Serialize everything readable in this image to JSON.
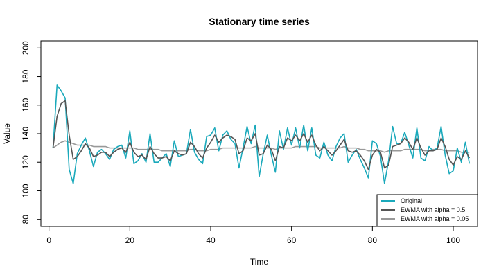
{
  "chart_data": {
    "type": "line",
    "title": "Stationary time series",
    "xlabel": "Time",
    "ylabel": "Value",
    "xlim": [
      -2,
      106
    ],
    "ylim": [
      75,
      205
    ],
    "xticks": [
      0,
      20,
      40,
      60,
      80,
      100
    ],
    "yticks": [
      80,
      100,
      120,
      140,
      160,
      180,
      200
    ],
    "grid": false,
    "legend_position": "bottom-right",
    "x": [
      1,
      2,
      3,
      4,
      5,
      6,
      7,
      8,
      9,
      10,
      11,
      12,
      13,
      14,
      15,
      16,
      17,
      18,
      19,
      20,
      21,
      22,
      23,
      24,
      25,
      26,
      27,
      28,
      29,
      30,
      31,
      32,
      33,
      34,
      35,
      36,
      37,
      38,
      39,
      40,
      41,
      42,
      43,
      44,
      45,
      46,
      47,
      48,
      49,
      50,
      51,
      52,
      53,
      54,
      55,
      56,
      57,
      58,
      59,
      60,
      61,
      62,
      63,
      64,
      65,
      66,
      67,
      68,
      69,
      70,
      71,
      72,
      73,
      74,
      75,
      76,
      77,
      78,
      79,
      80,
      81,
      82,
      83,
      84,
      85,
      86,
      87,
      88,
      89,
      90,
      91,
      92,
      93,
      94,
      95,
      96,
      97,
      98,
      99,
      100,
      101,
      102,
      103,
      104
    ],
    "series": [
      {
        "name": "Original",
        "color": "#1aa9bb",
        "values": [
          130,
          174,
          170,
          165,
          115,
          105,
          126,
          132,
          137,
          128,
          117,
          127,
          129,
          126,
          122,
          129,
          131,
          132,
          123,
          142,
          119,
          121,
          126,
          120,
          140,
          120,
          120,
          123,
          126,
          117,
          135,
          124,
          125,
          126,
          143,
          127,
          122,
          119,
          138,
          139,
          144,
          128,
          139,
          142,
          136,
          133,
          116,
          130,
          145,
          133,
          146,
          110,
          126,
          139,
          125,
          113,
          142,
          129,
          144,
          132,
          144,
          130,
          146,
          128,
          144,
          125,
          123,
          134,
          125,
          121,
          131,
          137,
          140,
          120,
          125,
          129,
          122,
          116,
          109,
          135,
          133,
          124,
          105,
          121,
          145,
          133,
          133,
          141,
          132,
          123,
          144,
          123,
          121,
          131,
          128,
          130,
          145,
          125,
          112,
          114,
          130,
          120,
          134,
          119
        ]
      },
      {
        "name": "EWMA with alpha = 0.5",
        "color": "#555555",
        "values": [
          130,
          152,
          161,
          163,
          139,
          122,
          124,
          128,
          133,
          130,
          124,
          125,
          127,
          127,
          124,
          127,
          129,
          130,
          127,
          134,
          127,
          124,
          125,
          122,
          131,
          126,
          123,
          123,
          124,
          121,
          128,
          126,
          125,
          126,
          134,
          131,
          126,
          123,
          130,
          134,
          139,
          134,
          137,
          139,
          138,
          136,
          126,
          128,
          137,
          135,
          140,
          125,
          126,
          132,
          129,
          121,
          131,
          130,
          137,
          135,
          139,
          135,
          140,
          134,
          139,
          132,
          128,
          131,
          128,
          125,
          128,
          132,
          136,
          128,
          127,
          128,
          125,
          121,
          115,
          125,
          129,
          127,
          116,
          118,
          131,
          132,
          133,
          137,
          134,
          129,
          137,
          130,
          125,
          128,
          128,
          129,
          137,
          131,
          122,
          118,
          124,
          122,
          128,
          123
        ]
      },
      {
        "name": "EWMA with alpha = 0.05",
        "color": "#999999",
        "values": [
          130,
          132,
          134,
          135,
          134,
          133,
          132,
          132,
          132,
          132,
          131,
          131,
          131,
          131,
          130,
          130,
          130,
          130,
          130,
          130,
          130,
          129,
          129,
          129,
          129,
          129,
          129,
          128,
          128,
          128,
          128,
          128,
          128,
          128,
          129,
          129,
          128,
          128,
          128,
          129,
          129,
          129,
          130,
          130,
          130,
          130,
          130,
          130,
          130,
          130,
          131,
          130,
          130,
          130,
          130,
          129,
          130,
          130,
          130,
          130,
          131,
          131,
          131,
          131,
          131,
          131,
          130,
          130,
          130,
          130,
          130,
          130,
          131,
          130,
          130,
          130,
          129,
          129,
          128,
          128,
          128,
          128,
          127,
          128,
          128,
          128,
          128,
          129,
          129,
          129,
          129,
          129,
          128,
          128,
          129,
          129,
          129,
          128,
          128,
          128,
          128,
          127,
          127,
          127
        ]
      }
    ]
  }
}
